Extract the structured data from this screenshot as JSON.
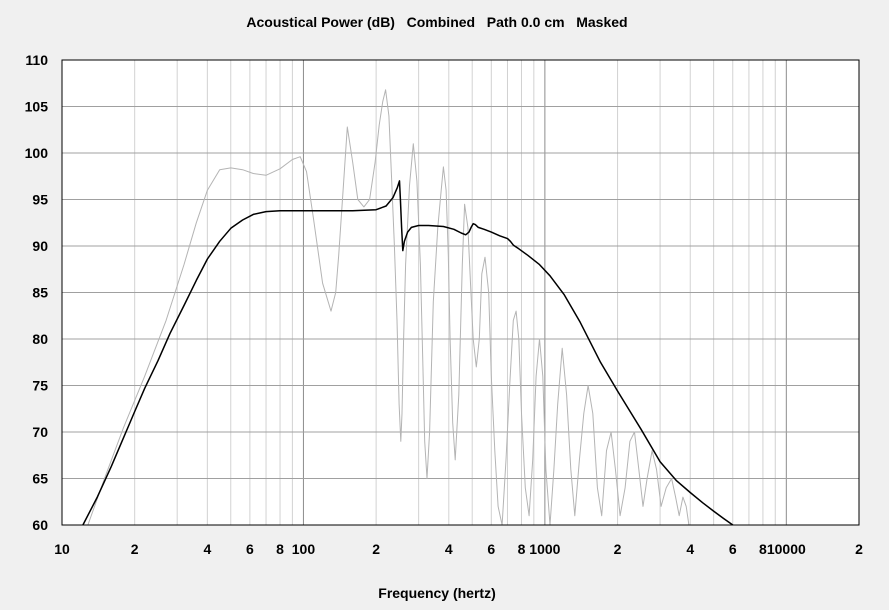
{
  "chart_data": {
    "type": "line",
    "title": "Acoustical Power (dB)   Combined   Path 0.0 cm   Masked",
    "xlabel": "Frequency (hertz)",
    "ylabel": "",
    "x_scale": "log",
    "xlim": [
      10,
      20000
    ],
    "ylim": [
      60,
      110
    ],
    "grid": true,
    "y_ticks": [
      "110",
      "105",
      "100",
      "95",
      "90",
      "85",
      "80",
      "75",
      "70",
      "65",
      "60"
    ],
    "x_ticks": [
      {
        "x": 10,
        "label": "10"
      },
      {
        "x": 20,
        "label": "2"
      },
      {
        "x": 40,
        "label": "4"
      },
      {
        "x": 60,
        "label": "6"
      },
      {
        "x": 80,
        "label": "8"
      },
      {
        "x": 100,
        "label": "100"
      },
      {
        "x": 200,
        "label": "2"
      },
      {
        "x": 400,
        "label": "4"
      },
      {
        "x": 600,
        "label": "6"
      },
      {
        "x": 800,
        "label": "8"
      },
      {
        "x": 1000,
        "label": "1000"
      },
      {
        "x": 2000,
        "label": "2"
      },
      {
        "x": 4000,
        "label": "4"
      },
      {
        "x": 6000,
        "label": "6"
      },
      {
        "x": 8000,
        "label": "8"
      },
      {
        "x": 10000,
        "label": "10000"
      },
      {
        "x": 20000,
        "label": "2"
      }
    ],
    "series": [
      {
        "color": "#b4b4b4",
        "x": [
          12.8,
          15,
          18,
          22,
          27,
          32,
          36,
          40,
          45,
          50,
          56,
          62,
          70,
          80,
          90,
          97,
          103,
          110,
          120,
          130,
          136,
          140,
          146,
          152,
          160,
          168,
          178,
          188,
          198,
          206,
          213,
          219,
          226,
          232,
          238,
          244,
          249,
          253,
          256,
          260,
          265,
          275,
          285,
          295,
          305,
          312,
          318,
          325,
          333,
          345,
          360,
          372,
          380,
          390,
          398,
          405,
          415,
          425,
          440,
          455,
          465,
          480,
          492,
          505,
          520,
          535,
          548,
          565,
          585,
          600,
          620,
          640,
          665,
          690,
          715,
          740,
          760,
          780,
          800,
          830,
          860,
          890,
          920,
          950,
          980,
          1010,
          1050,
          1090,
          1130,
          1180,
          1230,
          1280,
          1330,
          1390,
          1450,
          1510,
          1580,
          1650,
          1720,
          1800,
          1880,
          1960,
          2050,
          2150,
          2250,
          2350,
          2450,
          2550,
          2650,
          2780,
          2900,
          3030,
          3180,
          3350,
          3480,
          3600,
          3730,
          3850,
          3950
        ],
        "y": [
          60,
          65,
          70.5,
          76,
          82,
          88,
          92.5,
          96,
          98.2,
          98.4,
          98.2,
          97.8,
          97.6,
          98.3,
          99.3,
          99.6,
          98,
          93,
          86,
          83,
          85,
          89,
          96,
          102.8,
          99,
          95,
          94.2,
          95,
          99,
          103,
          105.5,
          106.8,
          104,
          97,
          90,
          82,
          73,
          69,
          72,
          80,
          88,
          96.5,
          101,
          97,
          88,
          78,
          69,
          65,
          70,
          84,
          92,
          96,
          98.5,
          96,
          89,
          80,
          71,
          67,
          74,
          88,
          94.5,
          92,
          86,
          80,
          77,
          80,
          87,
          88.8,
          85,
          76,
          68,
          62,
          60,
          67,
          75,
          82,
          83,
          80,
          72,
          64,
          61,
          67,
          76,
          80,
          76,
          66,
          60,
          66,
          73,
          79,
          74,
          66,
          61,
          67,
          72,
          75,
          72,
          64,
          61,
          68,
          70,
          66,
          61,
          64,
          69,
          70,
          66,
          62,
          65,
          68,
          66,
          62,
          64,
          65,
          63,
          61,
          63,
          62,
          60
        ]
      },
      {
        "color": "#000000",
        "x": [
          12.2,
          14,
          16,
          18,
          20,
          22,
          25,
          28,
          32,
          36,
          40,
          45,
          50,
          56,
          62,
          70,
          80,
          100,
          130,
          160,
          200,
          220,
          235,
          245,
          250,
          252,
          255,
          258,
          262,
          270,
          280,
          300,
          330,
          380,
          420,
          450,
          470,
          485,
          495,
          505,
          515,
          530,
          560,
          600,
          650,
          700,
          720,
          740,
          780,
          850,
          950,
          1050,
          1200,
          1400,
          1700,
          2000,
          2500,
          3000,
          3500,
          4000,
          4500,
          5000,
          5500,
          6000
        ],
        "y": [
          60,
          63,
          66.3,
          69.4,
          72.2,
          74.7,
          77.7,
          80.6,
          83.6,
          86.3,
          88.6,
          90.5,
          91.9,
          92.8,
          93.4,
          93.7,
          93.8,
          93.8,
          93.8,
          93.8,
          93.9,
          94.3,
          95.2,
          96.3,
          97,
          95,
          92,
          89.5,
          90.5,
          91.5,
          92,
          92.2,
          92.2,
          92.1,
          91.8,
          91.4,
          91.2,
          91.5,
          92,
          92.4,
          92.3,
          92,
          91.8,
          91.5,
          91.1,
          90.8,
          90.5,
          90.1,
          89.7,
          89,
          88,
          86.8,
          84.8,
          81.8,
          77.5,
          74.4,
          70.3,
          66.8,
          64.8,
          63.5,
          62.4,
          61.5,
          60.7,
          60
        ]
      }
    ]
  }
}
